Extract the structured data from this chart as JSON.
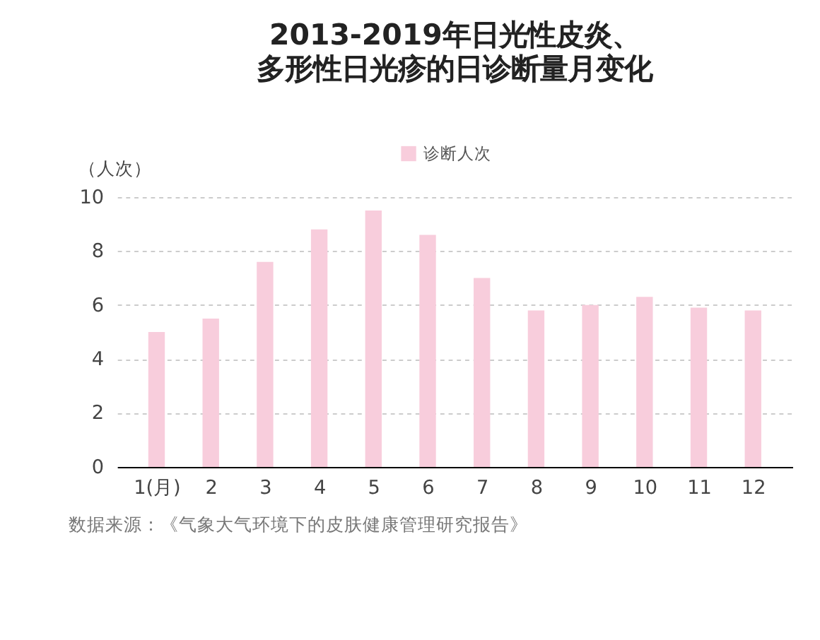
{
  "chart_data": {
    "type": "bar",
    "title": "2013-2019年日光性皮炎、",
    "subtitle": "多形性日光疹的日诊断量月变化",
    "ylabel": "（人次）",
    "categories": [
      "1(月)",
      "2",
      "3",
      "4",
      "5",
      "6",
      "7",
      "8",
      "9",
      "10",
      "11",
      "12"
    ],
    "series": [
      {
        "name": "诊断人次",
        "color": "#f8cddc",
        "values": [
          5.0,
          5.5,
          7.6,
          8.8,
          9.5,
          8.6,
          7.0,
          5.8,
          6.0,
          6.3,
          5.9,
          5.8
        ]
      }
    ],
    "ylim": [
      0,
      10
    ],
    "yticks": [
      0,
      2,
      4,
      6,
      8,
      10
    ],
    "grid": "y",
    "legend": "top",
    "annotations": [
      "数据来源：《气象大气环境下的皮肤健康管理研究报告》"
    ]
  }
}
